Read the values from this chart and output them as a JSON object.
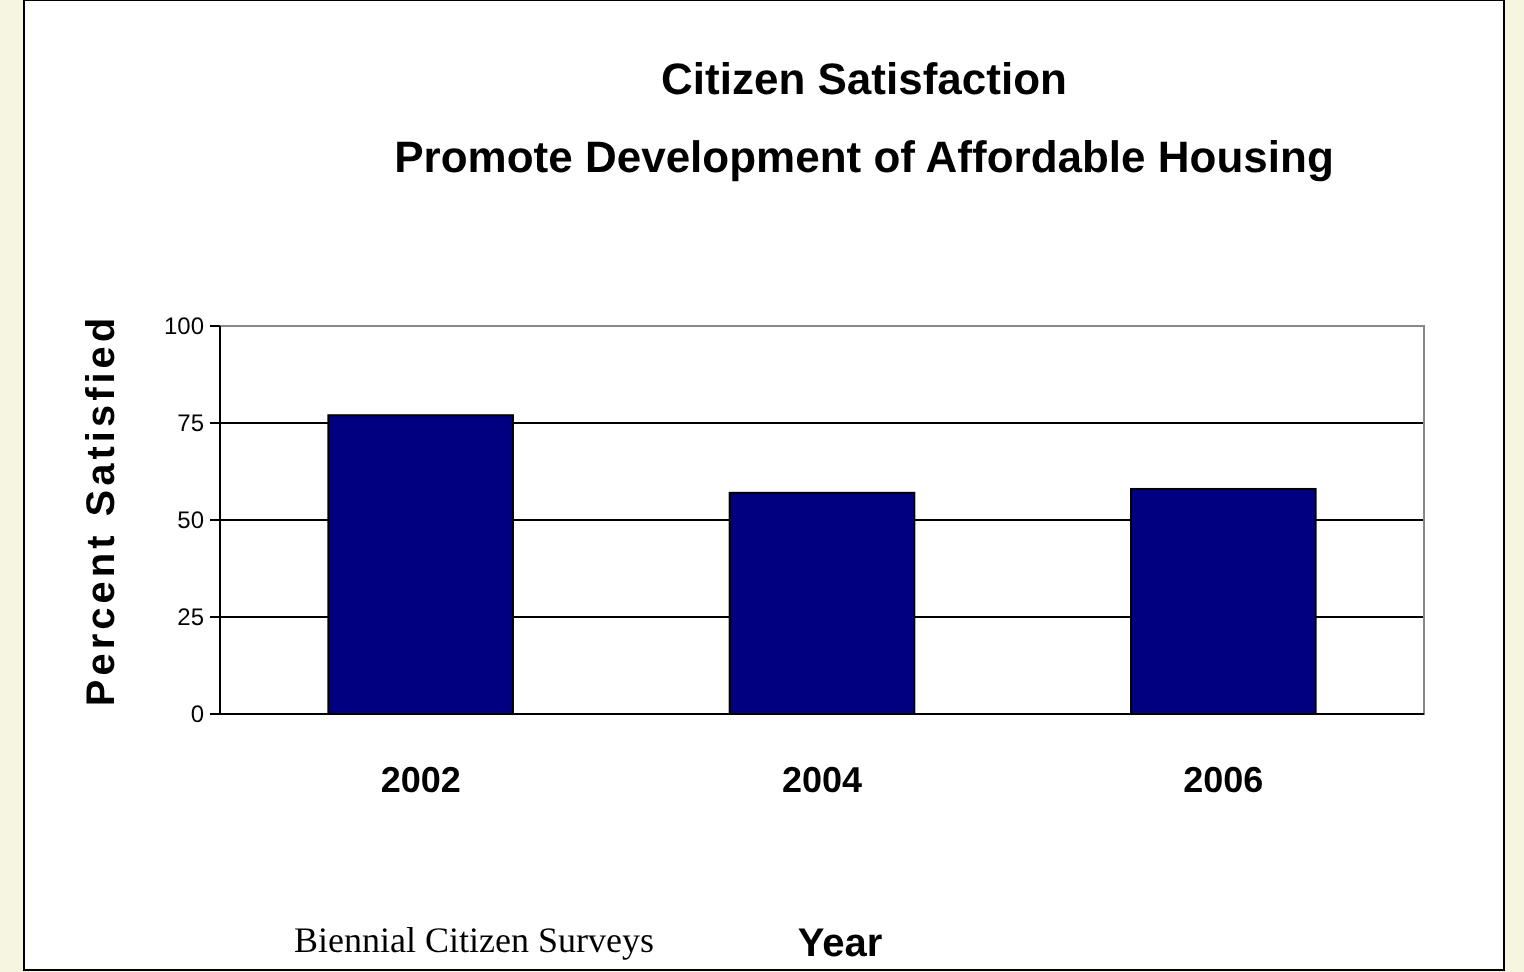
{
  "chart_data": {
    "type": "bar",
    "title": "Citizen Satisfaction\nPromote Development of Affordable Housing",
    "xlabel": "Year",
    "ylabel": "Percent Satisfied",
    "categories": [
      "2002",
      "2004",
      "2006"
    ],
    "values": [
      77,
      57,
      58
    ],
    "color": "#000080",
    "ylim": [
      0,
      100
    ],
    "yticks": [
      0,
      25,
      50,
      75,
      100
    ],
    "grid": "y",
    "annotations": [
      "Biennial Citizen Surveys"
    ]
  }
}
